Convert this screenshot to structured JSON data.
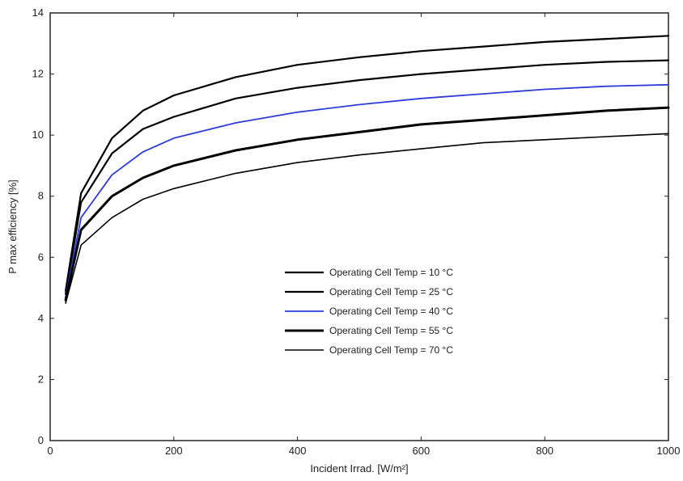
{
  "chart_data": {
    "type": "line",
    "title": "",
    "xlabel": "Incident Irrad. [W/m²]",
    "ylabel": "P max efficiency [%]",
    "xlim": [
      0,
      1000
    ],
    "ylim": [
      0,
      14
    ],
    "xticks": [
      0,
      200,
      400,
      600,
      800,
      1000
    ],
    "yticks": [
      0,
      2,
      4,
      6,
      8,
      10,
      12,
      14
    ],
    "grid": false,
    "legend_position": "lower-center",
    "x": [
      25,
      50,
      100,
      150,
      200,
      300,
      400,
      500,
      600,
      700,
      800,
      900,
      1000
    ],
    "series": [
      {
        "name": "Operating Cell Temp = 10 °C",
        "color": "#000000",
        "values": [
          4.9,
          8.1,
          9.9,
          10.8,
          11.3,
          11.9,
          12.3,
          12.55,
          12.75,
          12.9,
          13.05,
          13.15,
          13.25
        ]
      },
      {
        "name": "Operating Cell Temp = 25 °C",
        "color": "#000000",
        "values": [
          4.8,
          7.8,
          9.4,
          10.2,
          10.6,
          11.2,
          11.55,
          11.8,
          12.0,
          12.15,
          12.3,
          12.4,
          12.45
        ]
      },
      {
        "name": "Operating Cell Temp = 40 °C",
        "color": "#2c3cdc",
        "values": [
          4.7,
          7.3,
          8.7,
          9.45,
          9.9,
          10.4,
          10.75,
          11.0,
          11.2,
          11.35,
          11.5,
          11.6,
          11.65
        ]
      },
      {
        "name": "Operating Cell Temp = 55 °C",
        "color": "#000000",
        "values": [
          4.6,
          6.9,
          8.0,
          8.6,
          9.0,
          9.5,
          9.85,
          10.1,
          10.35,
          10.5,
          10.65,
          10.8,
          10.9
        ]
      },
      {
        "name": "Operating Cell Temp = 70 °C",
        "color": "#000000",
        "values": [
          4.5,
          6.4,
          7.3,
          7.9,
          8.25,
          8.75,
          9.1,
          9.35,
          9.55,
          9.75,
          9.85,
          9.95,
          10.05
        ]
      }
    ]
  }
}
